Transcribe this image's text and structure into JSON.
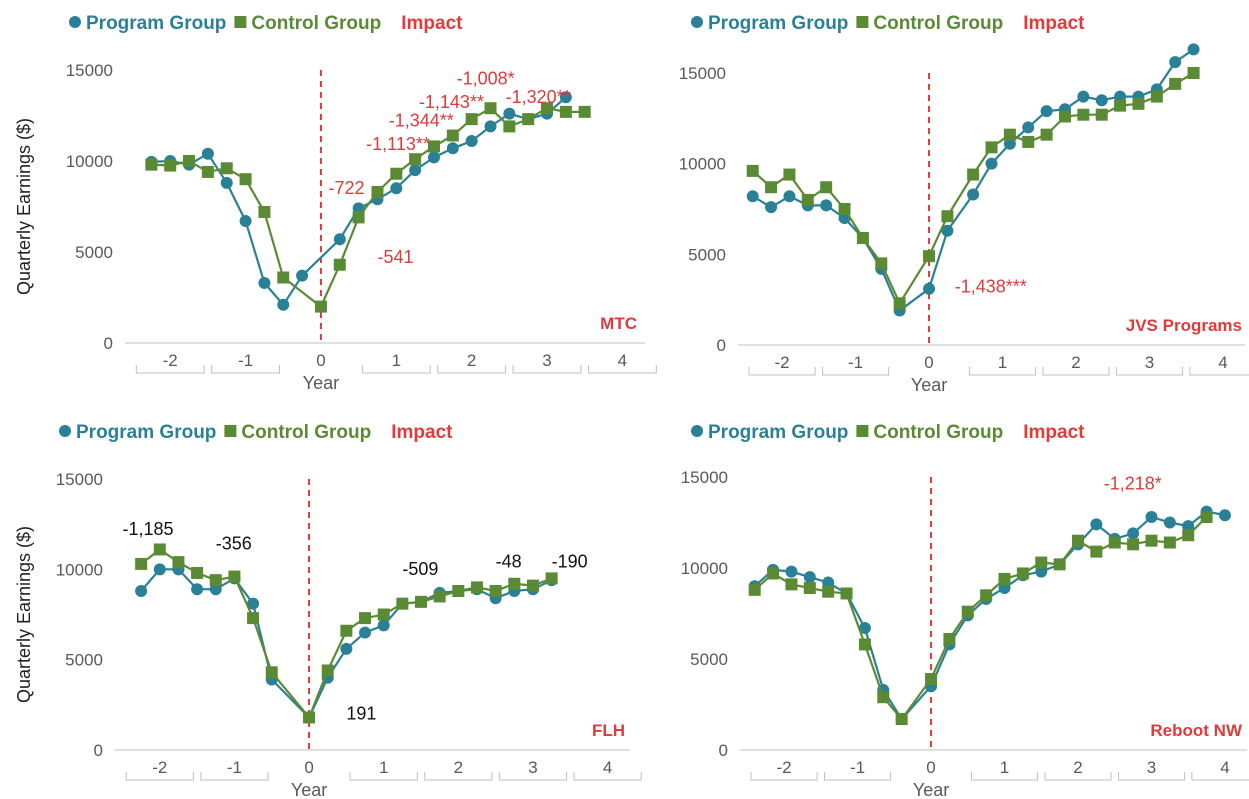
{
  "colors": {
    "program": "#2a8197",
    "control": "#5b8a34",
    "impact": "#e03a3a",
    "annotation_black": "#111111",
    "axis": "#bfbfbf",
    "tick_label": "#595959"
  },
  "legend": {
    "program_label": "Program Group",
    "control_label": "Control Group",
    "impact_label": "Impact",
    "program_marker": "circle-icon",
    "control_marker": "square-icon"
  },
  "chart_data": [
    {
      "type": "line",
      "title": "MTC",
      "ylabel": "Quarterly Earnings ($)",
      "xlabel": "Year",
      "ylim": [
        0,
        15000
      ],
      "yticks": [
        0,
        5000,
        10000,
        15000
      ],
      "xlim": [
        -2.6,
        4.3
      ],
      "xtick_labels": [
        "-2",
        "-1",
        "0",
        "1",
        "2",
        "3",
        "4"
      ],
      "impact_line_x": 0,
      "grid": false,
      "series": [
        {
          "name": "Program Group",
          "marker": "circle",
          "x": [
            -2.25,
            -2,
            -1.75,
            -1.5,
            -1.25,
            -1,
            -0.75,
            -0.5,
            -0.25,
            0.25,
            0.5,
            0.75,
            1,
            1.25,
            1.5,
            1.75,
            2,
            2.25,
            2.5,
            2.75,
            3,
            3.25,
            3.5,
            3.75,
            4
          ],
          "y": [
            9950,
            10000,
            9800,
            10400,
            8800,
            6700,
            3300,
            2100,
            3700,
            5700,
            7400,
            7900,
            8500,
            9500,
            10200,
            10700,
            11100,
            11900,
            12600,
            12300,
            12600,
            13500,
            null,
            null,
            null
          ]
        },
        {
          "name": "Control Group",
          "marker": "square",
          "x": [
            -2.25,
            -2,
            -1.75,
            -1.5,
            -1.25,
            -1,
            -0.75,
            -0.5,
            0,
            0.25,
            0.5,
            0.75,
            1,
            1.25,
            1.5,
            1.75,
            2,
            2.25,
            2.5,
            2.75,
            3,
            3.25,
            3.5,
            3.75,
            4
          ],
          "y": [
            9800,
            9750,
            10000,
            9400,
            9600,
            9000,
            7200,
            3600,
            2000,
            4300,
            6900,
            8300,
            9300,
            10100,
            10800,
            11400,
            12300,
            12900,
            11900,
            12300,
            12900,
            12700,
            12700,
            null,
            null
          ]
        }
      ],
      "annotations": [
        {
          "text": "-722",
          "x": 0.1,
          "y": 8200,
          "color": "impact"
        },
        {
          "text": "-541",
          "x": 0.75,
          "y": 4400,
          "color": "impact"
        },
        {
          "text": "-1,113**",
          "x": 0.6,
          "y": 10600,
          "color": "impact"
        },
        {
          "text": "-1,344**",
          "x": 0.9,
          "y": 11900,
          "color": "impact"
        },
        {
          "text": "-1,143**",
          "x": 1.3,
          "y": 12900,
          "color": "impact"
        },
        {
          "text": "-1,008*",
          "x": 1.8,
          "y": 14200,
          "color": "impact"
        },
        {
          "text": "-1,320**",
          "x": 2.45,
          "y": 13200,
          "color": "impact"
        }
      ]
    },
    {
      "type": "line",
      "title": "JVS Programs",
      "ylabel": "",
      "xlabel": "Year",
      "ylim": [
        0,
        15000
      ],
      "yticks": [
        0,
        5000,
        10000,
        15000
      ],
      "xlim": [
        -2.6,
        4.3
      ],
      "xtick_labels": [
        "-2",
        "-1",
        "0",
        "1",
        "2",
        "3",
        "4"
      ],
      "impact_line_x": 0,
      "grid": false,
      "series": [
        {
          "name": "Program Group",
          "marker": "circle",
          "x": [
            -2.4,
            -2.15,
            -1.9,
            -1.65,
            -1.4,
            -1.15,
            -0.9,
            -0.65,
            -0.4,
            0,
            0.25,
            0.6,
            0.85,
            1.1,
            1.35,
            1.6,
            1.85,
            2.1,
            2.35,
            2.6,
            2.85,
            3.1,
            3.35,
            3.6,
            3.85,
            4.1
          ],
          "y": [
            8200,
            7600,
            8200,
            7700,
            7700,
            7000,
            5900,
            4200,
            1900,
            3100,
            6300,
            8300,
            10000,
            11100,
            12000,
            12900,
            13000,
            13700,
            13500,
            13700,
            13700,
            14100,
            15600,
            16300,
            null,
            null
          ]
        },
        {
          "name": "Control Group",
          "marker": "square",
          "x": [
            -2.4,
            -2.15,
            -1.9,
            -1.65,
            -1.4,
            -1.15,
            -0.9,
            -0.65,
            -0.4,
            0,
            0.25,
            0.6,
            0.85,
            1.1,
            1.35,
            1.6,
            1.85,
            2.1,
            2.35,
            2.6,
            2.85,
            3.1,
            3.35,
            3.6,
            3.85,
            4.1
          ],
          "y": [
            9600,
            8700,
            9400,
            8000,
            8700,
            7500,
            5900,
            4500,
            2300,
            4900,
            7100,
            9400,
            10900,
            11600,
            11200,
            11600,
            12600,
            12700,
            12700,
            13200,
            13300,
            13700,
            14400,
            15000,
            null,
            null
          ]
        }
      ],
      "annotations": [
        {
          "text": "-1,438***",
          "x": 0.35,
          "y": 2900,
          "color": "impact"
        }
      ]
    },
    {
      "type": "line",
      "title": "FLH",
      "ylabel": "Quarterly Earnings ($)",
      "xlabel": "Year",
      "ylim": [
        0,
        15000
      ],
      "yticks": [
        0,
        5000,
        10000,
        15000
      ],
      "xlim": [
        -2.6,
        4.3
      ],
      "xtick_labels": [
        "-2",
        "-1",
        "0",
        "1",
        "2",
        "3",
        "4"
      ],
      "impact_line_x": 0,
      "grid": false,
      "series": [
        {
          "name": "Program Group",
          "marker": "circle",
          "x": [
            -2.25,
            -2,
            -1.75,
            -1.5,
            -1.25,
            -1,
            -0.75,
            -0.5,
            0,
            0.25,
            0.5,
            0.75,
            1,
            1.25,
            1.5,
            1.75,
            2,
            2.25,
            2.5,
            2.75,
            3,
            3.25,
            3.5,
            3.75,
            4
          ],
          "y": [
            8800,
            10000,
            10000,
            8900,
            8900,
            9500,
            8100,
            3900,
            1800,
            4000,
            5600,
            6500,
            6900,
            8100,
            8200,
            8700,
            8800,
            8900,
            8400,
            8800,
            8900,
            9400,
            null,
            null,
            null
          ]
        },
        {
          "name": "Control Group",
          "marker": "square",
          "x": [
            -2.25,
            -2,
            -1.75,
            -1.5,
            -1.25,
            -1,
            -0.75,
            -0.5,
            0,
            0.25,
            0.5,
            0.75,
            1,
            1.25,
            1.5,
            1.75,
            2,
            2.25,
            2.5,
            2.75,
            3,
            3.25,
            3.5,
            3.75,
            4
          ],
          "y": [
            10300,
            11100,
            10400,
            9800,
            9400,
            9600,
            7300,
            4300,
            1800,
            4400,
            6600,
            7300,
            7500,
            8100,
            8200,
            8500,
            8800,
            9000,
            8800,
            9200,
            9100,
            9500,
            null,
            null,
            null
          ]
        }
      ],
      "annotations": [
        {
          "text": "-1,185",
          "x": -2.5,
          "y": 11900,
          "color": "annotation_black"
        },
        {
          "text": "-356",
          "x": -1.25,
          "y": 11100,
          "color": "annotation_black"
        },
        {
          "text": "191",
          "x": 0.5,
          "y": 1700,
          "color": "annotation_black"
        },
        {
          "text": "-509",
          "x": 1.25,
          "y": 9700,
          "color": "annotation_black"
        },
        {
          "text": "-48",
          "x": 2.5,
          "y": 10100,
          "color": "annotation_black"
        },
        {
          "text": "-190",
          "x": 3.25,
          "y": 10100,
          "color": "annotation_black"
        }
      ]
    },
    {
      "type": "line",
      "title": "Reboot NW",
      "ylabel": "",
      "xlabel": "Year",
      "ylim": [
        0,
        15000
      ],
      "yticks": [
        0,
        5000,
        10000,
        15000
      ],
      "xlim": [
        -2.6,
        4.3
      ],
      "xtick_labels": [
        "-2",
        "-1",
        "0",
        "1",
        "2",
        "3",
        "4"
      ],
      "impact_line_x": 0,
      "grid": false,
      "series": [
        {
          "name": "Program Group",
          "marker": "circle",
          "x": [
            -2.4,
            -2.15,
            -1.9,
            -1.65,
            -1.4,
            -1.15,
            -0.9,
            -0.65,
            -0.4,
            0,
            0.25,
            0.5,
            0.75,
            1,
            1.25,
            1.5,
            1.75,
            2,
            2.25,
            2.5,
            2.75,
            3,
            3.25,
            3.5,
            3.75,
            4,
            4.25
          ],
          "y": [
            9000,
            9900,
            9800,
            9500,
            9200,
            8600,
            6700,
            3300,
            1700,
            3500,
            5800,
            7400,
            8300,
            8900,
            9600,
            9800,
            10200,
            11300,
            12400,
            11600,
            11900,
            12800,
            12500,
            12300,
            13100,
            12900,
            null
          ]
        },
        {
          "name": "Control Group",
          "marker": "square",
          "x": [
            -2.4,
            -2.15,
            -1.9,
            -1.65,
            -1.4,
            -1.15,
            -0.9,
            -0.65,
            -0.4,
            0,
            0.25,
            0.5,
            0.75,
            1,
            1.25,
            1.5,
            1.75,
            2,
            2.25,
            2.5,
            2.75,
            3,
            3.25,
            3.5,
            3.75,
            4,
            4.25
          ],
          "y": [
            8800,
            9700,
            9100,
            8900,
            8700,
            8600,
            5800,
            2900,
            1700,
            3900,
            6100,
            7600,
            8500,
            9400,
            9700,
            10300,
            10200,
            11500,
            10900,
            11400,
            11300,
            11500,
            11400,
            11800,
            12800,
            null,
            null
          ]
        }
      ],
      "annotations": [
        {
          "text": "-1,218*",
          "x": 2.35,
          "y": 14300,
          "color": "impact"
        }
      ]
    }
  ]
}
